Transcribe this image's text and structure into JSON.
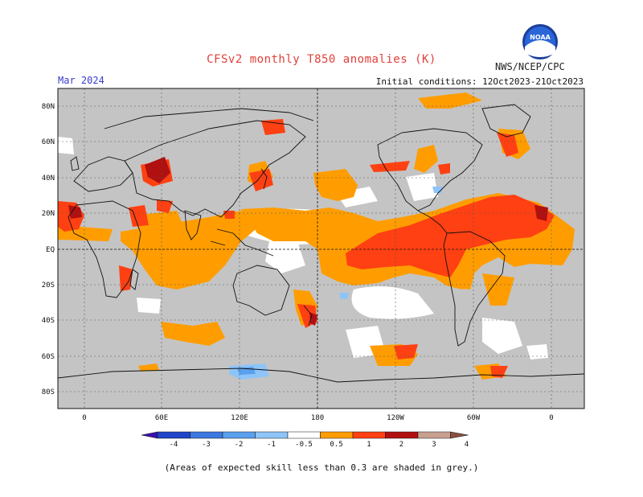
{
  "header": {
    "title": "CFSv2 monthly T850 anomalies (K)",
    "month": "Mar 2024",
    "org": "NWS/NCEP/CPC",
    "init": "Initial conditions: 12Oct2023-21Oct2023",
    "logo_text": "NOAA"
  },
  "axes": {
    "lat_labels": [
      "80N",
      "60N",
      "40N",
      "20N",
      "EQ",
      "20S",
      "40S",
      "60S",
      "80S"
    ],
    "lon_labels": [
      "0",
      "60E",
      "120E",
      "180",
      "120W",
      "60W",
      "0"
    ]
  },
  "colorbar": {
    "labels": [
      "-4",
      "-3",
      "-2",
      "-1",
      "-0.5",
      "0.5",
      "1",
      "2",
      "3",
      "4"
    ],
    "colors": [
      "#3a10b0",
      "#1f45c8",
      "#3c78e0",
      "#5aa0ef",
      "#8ec4f8",
      "#ffffff",
      "#ff9d00",
      "#ff4012",
      "#b01010",
      "#c8a090",
      "#8a5040"
    ]
  },
  "footnote": "(Areas of expected skill less than 0.3 are shaded in grey.)",
  "colors": {
    "grey": "#c4c4c4",
    "orange": "#ff9d00",
    "red": "#ff4012",
    "darkred": "#b01010",
    "lightblue": "#8ec4f8",
    "blue": "#5aa0ef"
  }
}
